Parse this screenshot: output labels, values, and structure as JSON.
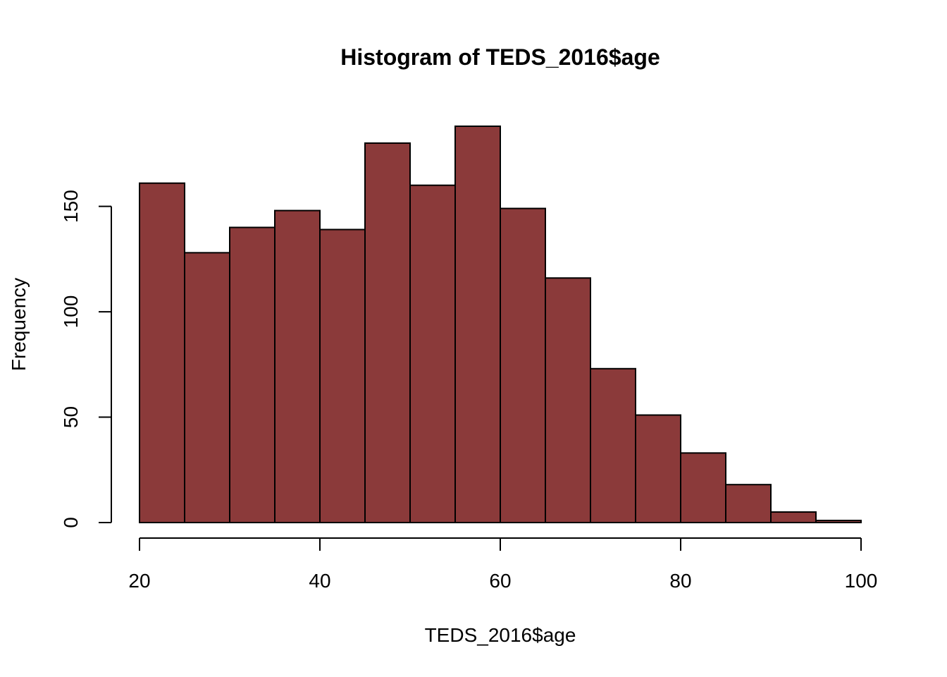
{
  "chart_data": {
    "type": "bar",
    "title": "Histogram of TEDS_2016$age",
    "xlabel": "TEDS_2016$age",
    "ylabel": "Frequency",
    "bar_color": "#8B3A3A",
    "bin_edges": [
      20,
      25,
      30,
      35,
      40,
      45,
      50,
      55,
      60,
      65,
      70,
      75,
      80,
      85,
      90,
      95,
      100
    ],
    "values": [
      161,
      128,
      140,
      148,
      139,
      180,
      160,
      188,
      149,
      116,
      73,
      51,
      33,
      18,
      5,
      1
    ],
    "xlim": [
      20,
      100
    ],
    "ylim": [
      0,
      188
    ],
    "x_ticks": [
      20,
      40,
      60,
      80,
      100
    ],
    "y_ticks": [
      0,
      50,
      100,
      150
    ],
    "grid": false,
    "legend": "none"
  }
}
